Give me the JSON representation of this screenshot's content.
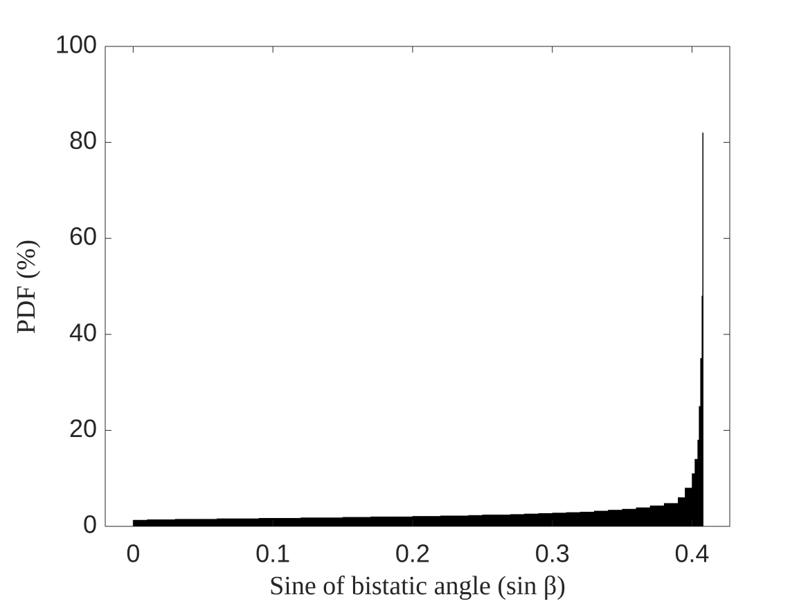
{
  "chart_data": {
    "type": "histogram",
    "xlabel": "Sine of bistatic angle (sin β)",
    "ylabel": "PDF (%)",
    "bins": [
      0,
      0.01,
      0.02,
      0.03,
      0.04,
      0.05,
      0.06,
      0.07,
      0.08,
      0.09,
      0.1,
      0.11,
      0.12,
      0.13,
      0.14,
      0.15,
      0.16,
      0.17,
      0.18,
      0.19,
      0.2,
      0.21,
      0.22,
      0.23,
      0.24,
      0.25,
      0.26,
      0.27,
      0.28,
      0.29,
      0.3,
      0.31,
      0.32,
      0.33,
      0.34,
      0.35,
      0.36,
      0.37,
      0.38,
      0.39,
      0.395,
      0.4,
      0.402,
      0.404,
      0.405,
      0.406,
      0.407,
      0.4075,
      0.408
    ],
    "values": [
      1.3,
      1.4,
      1.4,
      1.5,
      1.5,
      1.5,
      1.6,
      1.6,
      1.6,
      1.7,
      1.7,
      1.7,
      1.8,
      1.8,
      1.8,
      1.9,
      1.9,
      2.0,
      2.0,
      2.0,
      2.1,
      2.1,
      2.2,
      2.2,
      2.3,
      2.4,
      2.4,
      2.5,
      2.6,
      2.7,
      2.8,
      2.9,
      3.0,
      3.2,
      3.4,
      3.6,
      3.9,
      4.3,
      4.8,
      6,
      8,
      11,
      14,
      18,
      25,
      35,
      48,
      82
    ],
    "color": "#000000",
    "xlim": [
      -0.02,
      0.427
    ],
    "xticks": [
      0,
      0.1,
      0.2,
      0.3,
      0.4
    ],
    "ylim": [
      0,
      100
    ],
    "yticks": [
      0,
      20,
      40,
      60,
      80,
      100
    ]
  }
}
